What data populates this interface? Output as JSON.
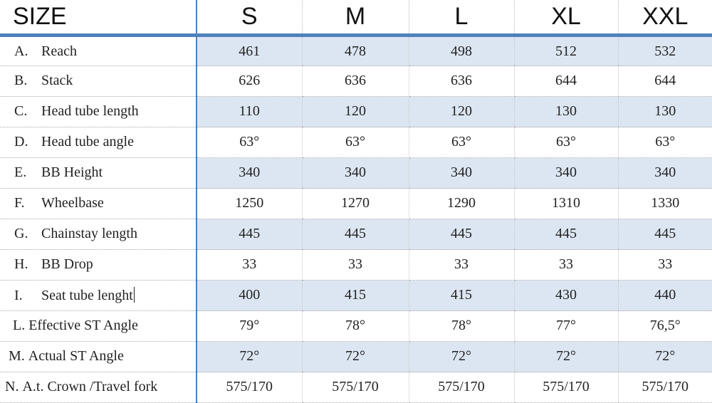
{
  "header": {
    "size_label": "SIZE",
    "sizes": [
      "S",
      "M",
      "L",
      "XL",
      "XXL"
    ]
  },
  "rows": [
    {
      "letter": "A.",
      "name": "Reach",
      "values": [
        "461",
        "478",
        "498",
        "512",
        "532"
      ]
    },
    {
      "letter": "B.",
      "name": "Stack",
      "values": [
        "626",
        "636",
        "636",
        "644",
        "644"
      ]
    },
    {
      "letter": "C.",
      "name": "Head tube length",
      "values": [
        "110",
        "120",
        "120",
        "130",
        "130"
      ]
    },
    {
      "letter": "D.",
      "name": "Head tube angle",
      "values": [
        "63°",
        "63°",
        "63°",
        "63°",
        "63°"
      ]
    },
    {
      "letter": "E.",
      "name": "BB Height",
      "values": [
        "340",
        "340",
        "340",
        "340",
        "340"
      ]
    },
    {
      "letter": "F.",
      "name": "Wheelbase",
      "values": [
        "1250",
        "1270",
        "1290",
        "1310",
        "1330"
      ]
    },
    {
      "letter": "G.",
      "name": "Chainstay length",
      "values": [
        "445",
        "445",
        "445",
        "445",
        "445"
      ]
    },
    {
      "letter": "H.",
      "name": "BB Drop",
      "values": [
        "33",
        "33",
        "33",
        "33",
        "33"
      ]
    },
    {
      "letter": "I.",
      "name": "Seat tube lenght",
      "values": [
        "400",
        "415",
        "415",
        "430",
        "440"
      ]
    },
    {
      "letter": "L.",
      "name": "Effective ST Angle",
      "values": [
        "79°",
        "78°",
        "78°",
        "77°",
        "76,5°"
      ]
    },
    {
      "letter": "M.",
      "name": "Actual ST Angle",
      "values": [
        "72°",
        "72°",
        "72°",
        "72°",
        "72°"
      ]
    },
    {
      "letter": "N.",
      "name": "A.t. Crown /Travel fork",
      "values": [
        "575/170",
        "575/170",
        "575/170",
        "575/170",
        "575/170"
      ]
    }
  ],
  "colors": {
    "accent": "#4f81bd",
    "band": "#dce6f2"
  }
}
